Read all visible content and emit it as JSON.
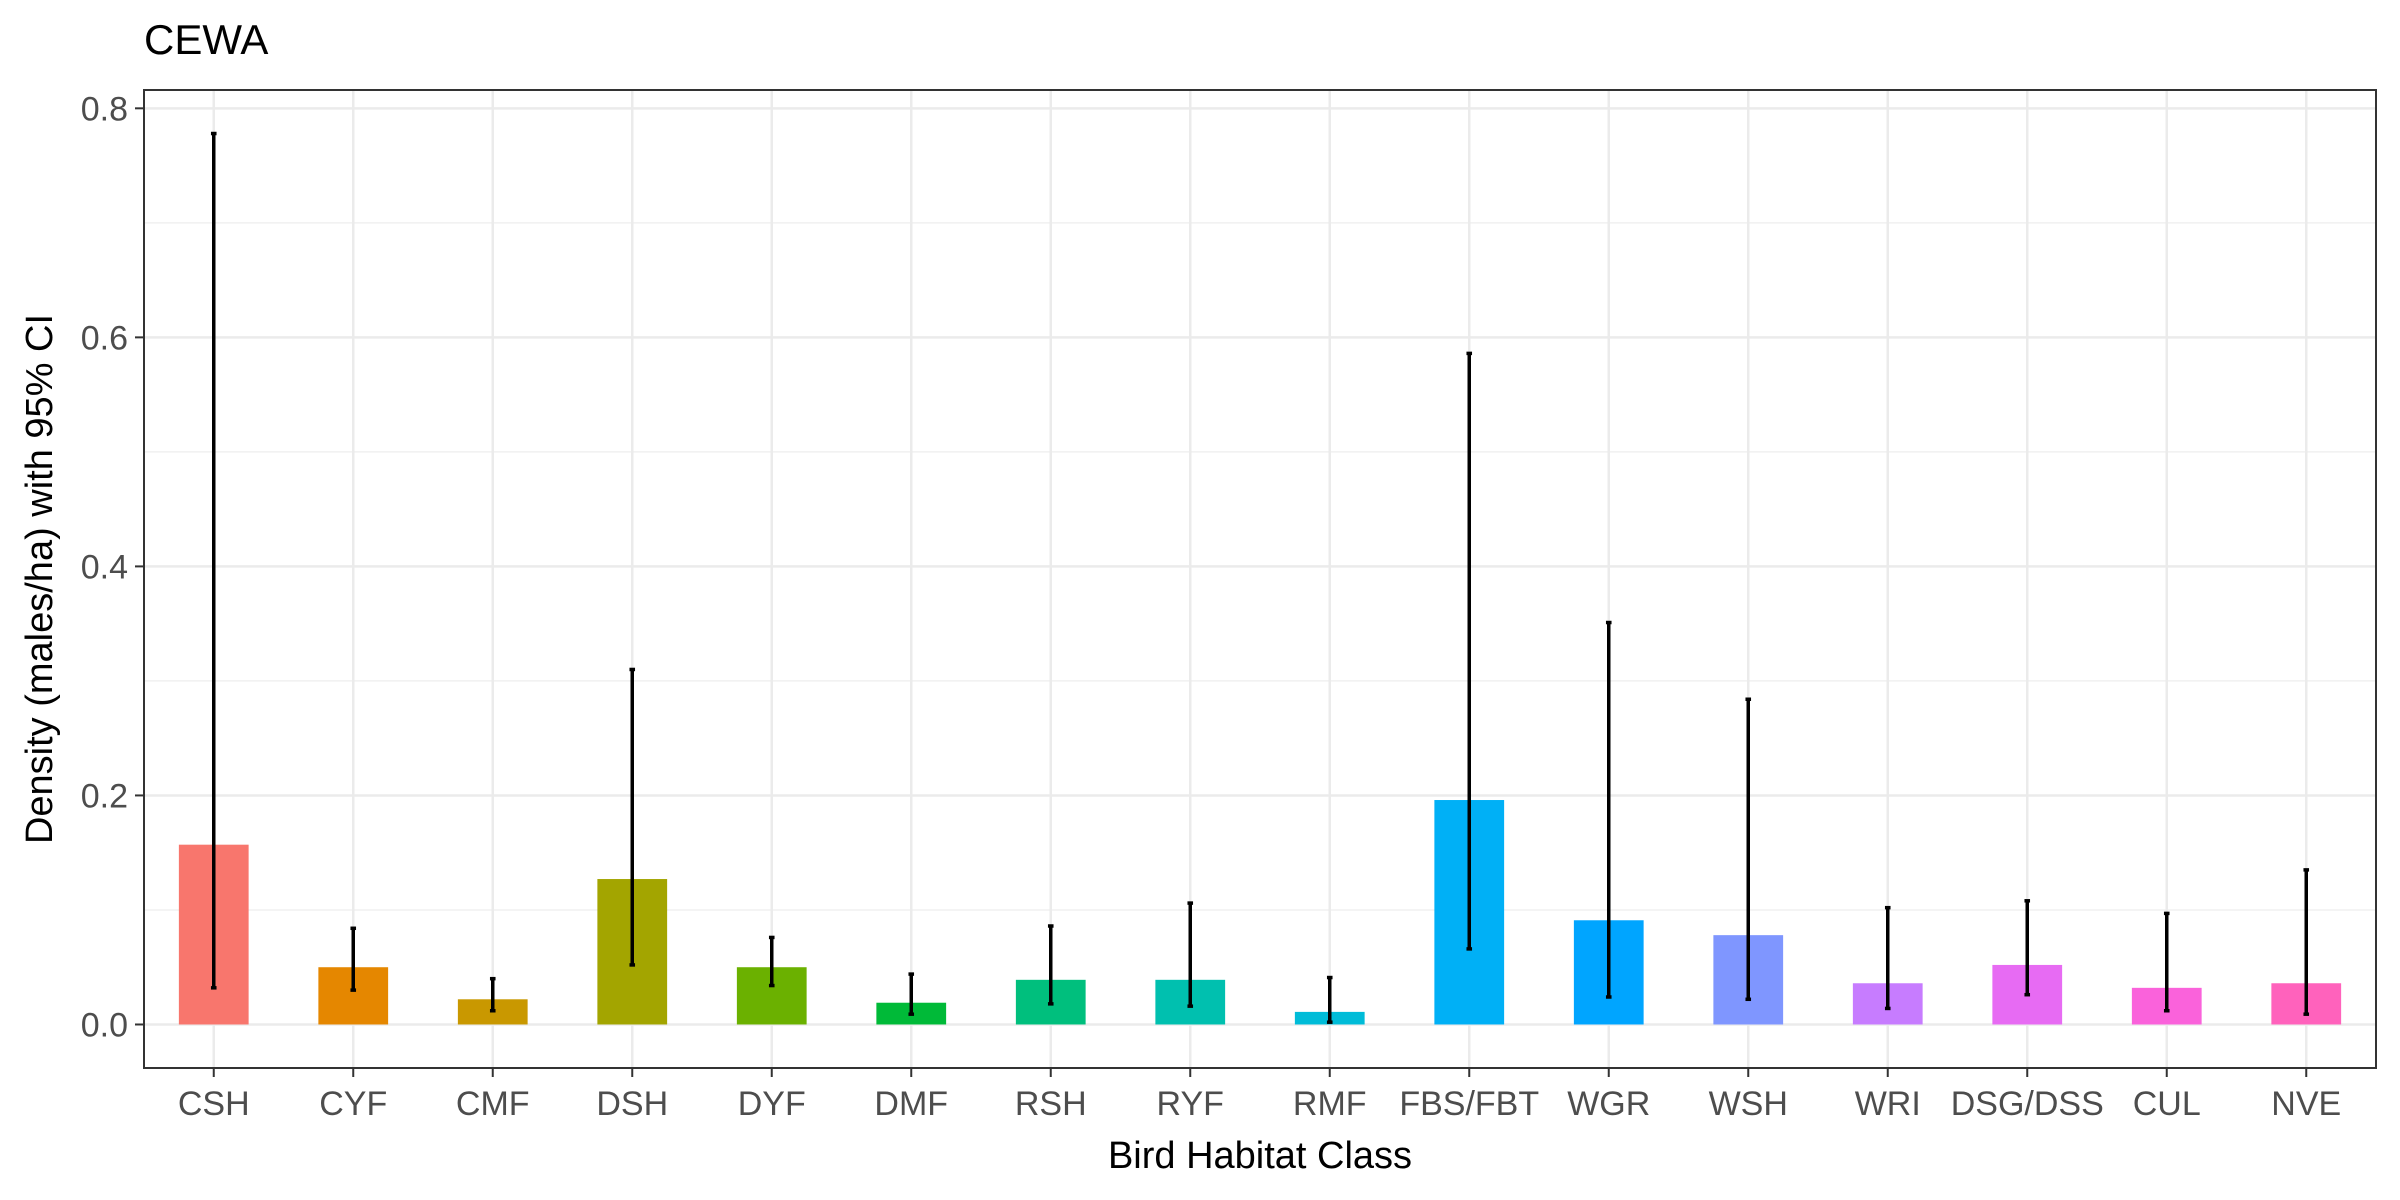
{
  "chart_data": {
    "type": "bar",
    "title": "CEWA",
    "xlabel": "Bird Habitat Class",
    "ylabel": "Density (males/ha) with 95% CI",
    "ylim": [
      -0.038,
      0.816
    ],
    "yticks": [
      0.0,
      0.2,
      0.4,
      0.6,
      0.8
    ],
    "grid": true,
    "legend": "none",
    "categories": [
      "CSH",
      "CYF",
      "CMF",
      "DSH",
      "DYF",
      "DMF",
      "RSH",
      "RYF",
      "RMF",
      "FBS/FBT",
      "WGR",
      "WSH",
      "WRI",
      "DSG/DSS",
      "CUL",
      "NVE"
    ],
    "values": [
      0.157,
      0.05,
      0.022,
      0.127,
      0.05,
      0.019,
      0.039,
      0.039,
      0.011,
      0.196,
      0.091,
      0.078,
      0.036,
      0.052,
      0.032,
      0.036
    ],
    "ci_lower": [
      0.032,
      0.03,
      0.012,
      0.052,
      0.034,
      0.009,
      0.018,
      0.016,
      0.002,
      0.066,
      0.024,
      0.022,
      0.014,
      0.026,
      0.012,
      0.009
    ],
    "ci_upper": [
      0.778,
      0.084,
      0.04,
      0.31,
      0.076,
      0.044,
      0.086,
      0.106,
      0.041,
      0.586,
      0.351,
      0.284,
      0.102,
      0.108,
      0.097,
      0.135
    ],
    "colors": [
      "#F8766D",
      "#E58700",
      "#C99800",
      "#A3A500",
      "#6BB100",
      "#00BA38",
      "#00BF7D",
      "#00C0AF",
      "#00BCD8",
      "#00B0F6",
      "#00A5FF",
      "#7F96FF",
      "#C77CFF",
      "#E76BF3",
      "#FA62DB",
      "#FF62BC"
    ]
  }
}
